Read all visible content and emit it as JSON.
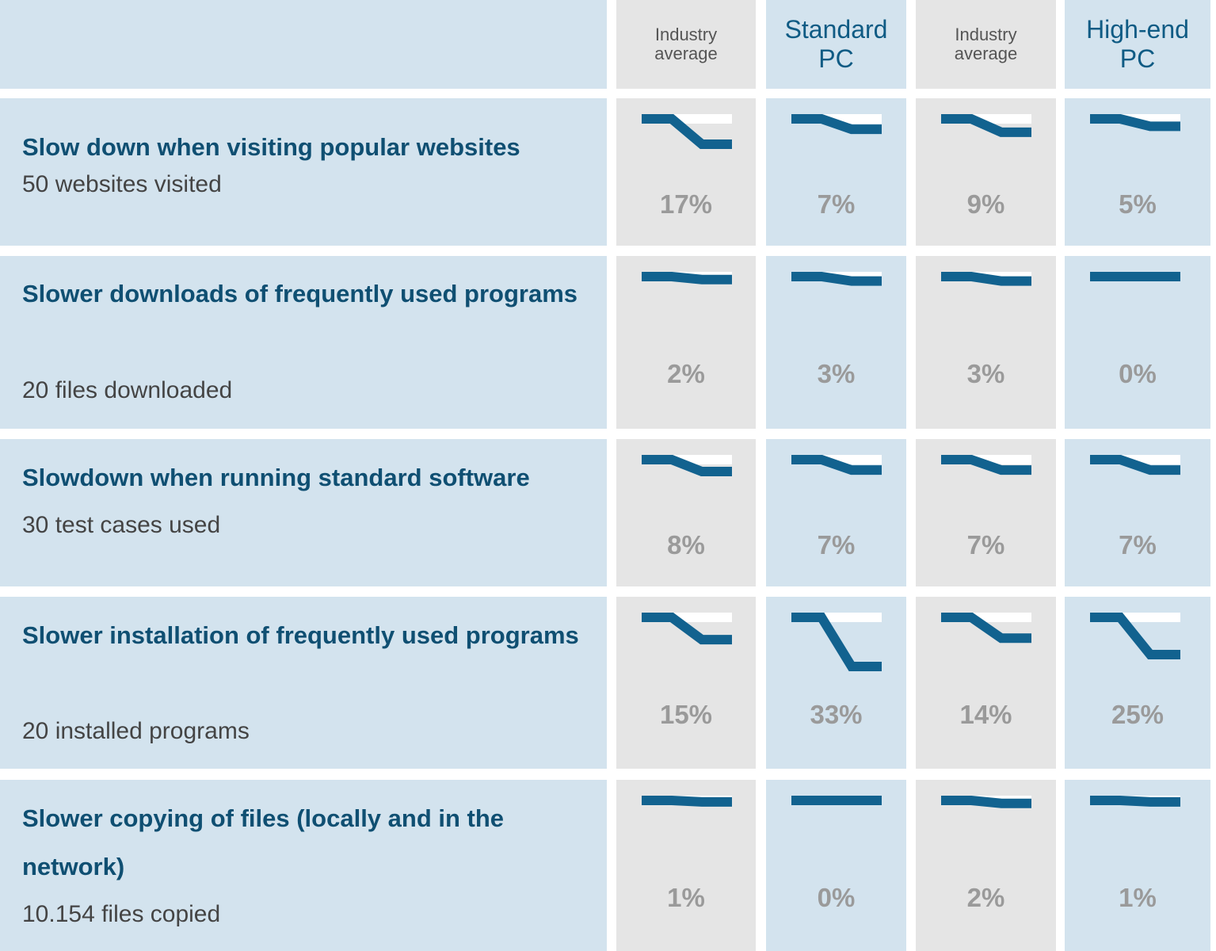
{
  "headers": [
    {
      "label": "Industry\naverage",
      "style": "small"
    },
    {
      "label": "Standard\nPC",
      "style": "large"
    },
    {
      "label": "Industry\naverage",
      "style": "small"
    },
    {
      "label": "High-end\nPC",
      "style": "large"
    }
  ],
  "chart_data": {
    "type": "table",
    "columns": [
      "Industry average",
      "Standard PC",
      "Industry average",
      "High-end PC"
    ],
    "unit": "%",
    "rows": [
      {
        "title": "Slow down when visiting popular websites",
        "subtitle": "50 websites visited",
        "values": [
          17,
          7,
          9,
          5
        ],
        "labels": [
          "17%",
          "7%",
          "9%",
          "5%"
        ]
      },
      {
        "title": "Slower downloads of frequently used programs",
        "subtitle": "20 files downloaded",
        "values": [
          2,
          3,
          3,
          0
        ],
        "labels": [
          "2%",
          "3%",
          "3%",
          "0%"
        ]
      },
      {
        "title": "Slowdown when running standard software",
        "subtitle": "30 test cases used",
        "values": [
          8,
          7,
          7,
          7
        ],
        "labels": [
          "8%",
          "7%",
          "7%",
          "7%"
        ]
      },
      {
        "title": "Slower installation of frequently used programs",
        "subtitle": "20 installed programs",
        "values": [
          15,
          33,
          14,
          25
        ],
        "labels": [
          "15%",
          "33%",
          "14%",
          "25%"
        ]
      },
      {
        "title": "Slower copying of files (locally and in the network)",
        "subtitle": "10.154 files copied",
        "values": [
          1,
          0,
          2,
          1
        ],
        "labels": [
          "1%",
          "0%",
          "2%",
          "1%"
        ]
      }
    ]
  },
  "colors": {
    "header_blue": "#d3e3ee",
    "gray_column": "#e5e5e5",
    "title_text": "#0f4f72",
    "spark_line": "#12628f",
    "spark_band": "#ffffff",
    "percent_text": "#9a9a9a"
  }
}
